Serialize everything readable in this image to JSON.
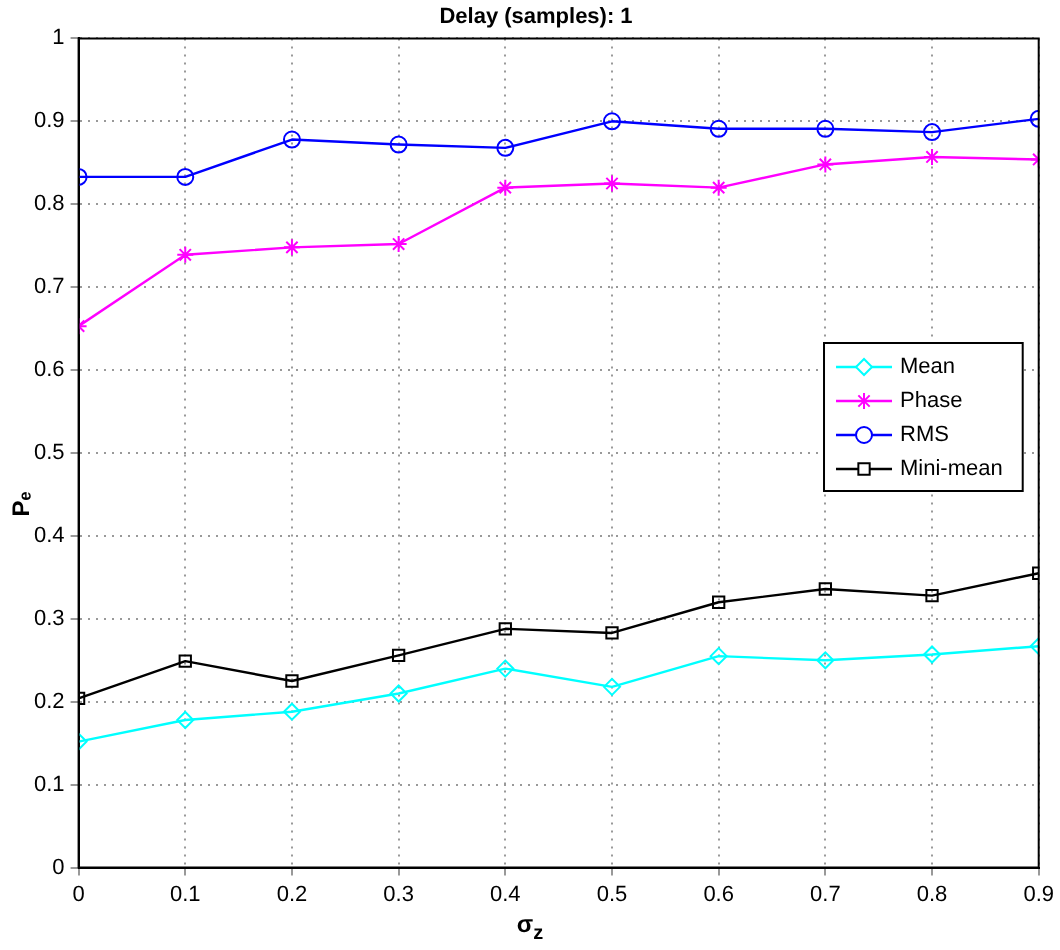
{
  "chart_data": {
    "type": "line",
    "title": "Delay (samples): 1",
    "xlabel": "σ$_{z}$",
    "ylabel": "Pₑ",
    "x": [
      0,
      0.1,
      0.2,
      0.3,
      0.4,
      0.5,
      0.6,
      0.7,
      0.8,
      0.9
    ],
    "series": [
      {
        "name": "Mean",
        "color": "#00ffff",
        "marker": "diamond",
        "values": [
          0.152,
          0.178,
          0.188,
          0.21,
          0.24,
          0.218,
          0.255,
          0.25,
          0.257,
          0.267
        ]
      },
      {
        "name": "Phase",
        "color": "#ff00ff",
        "marker": "cross",
        "values": [
          0.653,
          0.739,
          0.748,
          0.752,
          0.82,
          0.825,
          0.82,
          0.848,
          0.857,
          0.854
        ]
      },
      {
        "name": "RMS",
        "color": "#0000ff",
        "marker": "circle",
        "values": [
          0.833,
          0.833,
          0.878,
          0.872,
          0.868,
          0.9,
          0.891,
          0.891,
          0.887,
          0.903
        ]
      },
      {
        "name": "Mini-mean",
        "color": "#000000",
        "marker": "square",
        "values": [
          0.204,
          0.249,
          0.225,
          0.256,
          0.288,
          0.283,
          0.32,
          0.336,
          0.328,
          0.355
        ]
      }
    ],
    "xlim": [
      0,
      0.9
    ],
    "xticks": [
      0,
      0.1,
      0.2,
      0.3,
      0.4,
      0.5,
      0.6,
      0.7,
      0.8,
      0.9
    ],
    "ylim": [
      0,
      1
    ],
    "yticks": [
      0,
      0.1,
      0.2,
      0.3,
      0.4,
      0.5,
      0.6,
      0.7,
      0.8,
      0.9,
      1
    ],
    "grid": true,
    "legend": "right",
    "line_style": "solid"
  }
}
